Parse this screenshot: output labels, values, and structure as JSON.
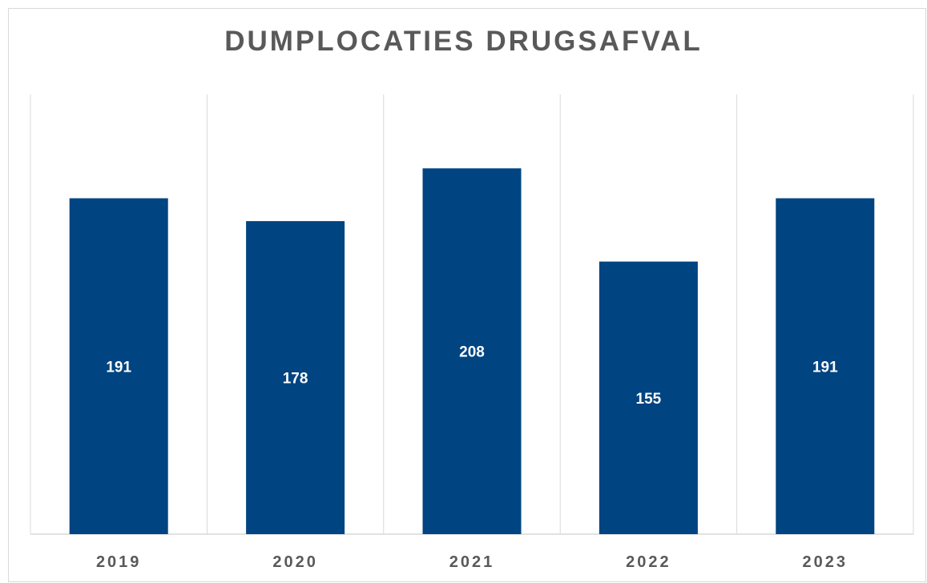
{
  "chart_data": {
    "type": "bar",
    "title": "DUMPLOCATIES DRUGSAFVAL",
    "xlabel": "",
    "ylabel": "",
    "categories": [
      "2019",
      "2020",
      "2021",
      "2022",
      "2023"
    ],
    "values": [
      191,
      178,
      208,
      155,
      191
    ],
    "data_labels": [
      "191",
      "178",
      "208",
      "155",
      "191"
    ],
    "ylim": [
      0,
      250
    ],
    "grid": "vertical category separators",
    "legend": "none",
    "bar_color": "#004481",
    "text_color": "#595959",
    "gridline_color": "#d9d9d9"
  }
}
